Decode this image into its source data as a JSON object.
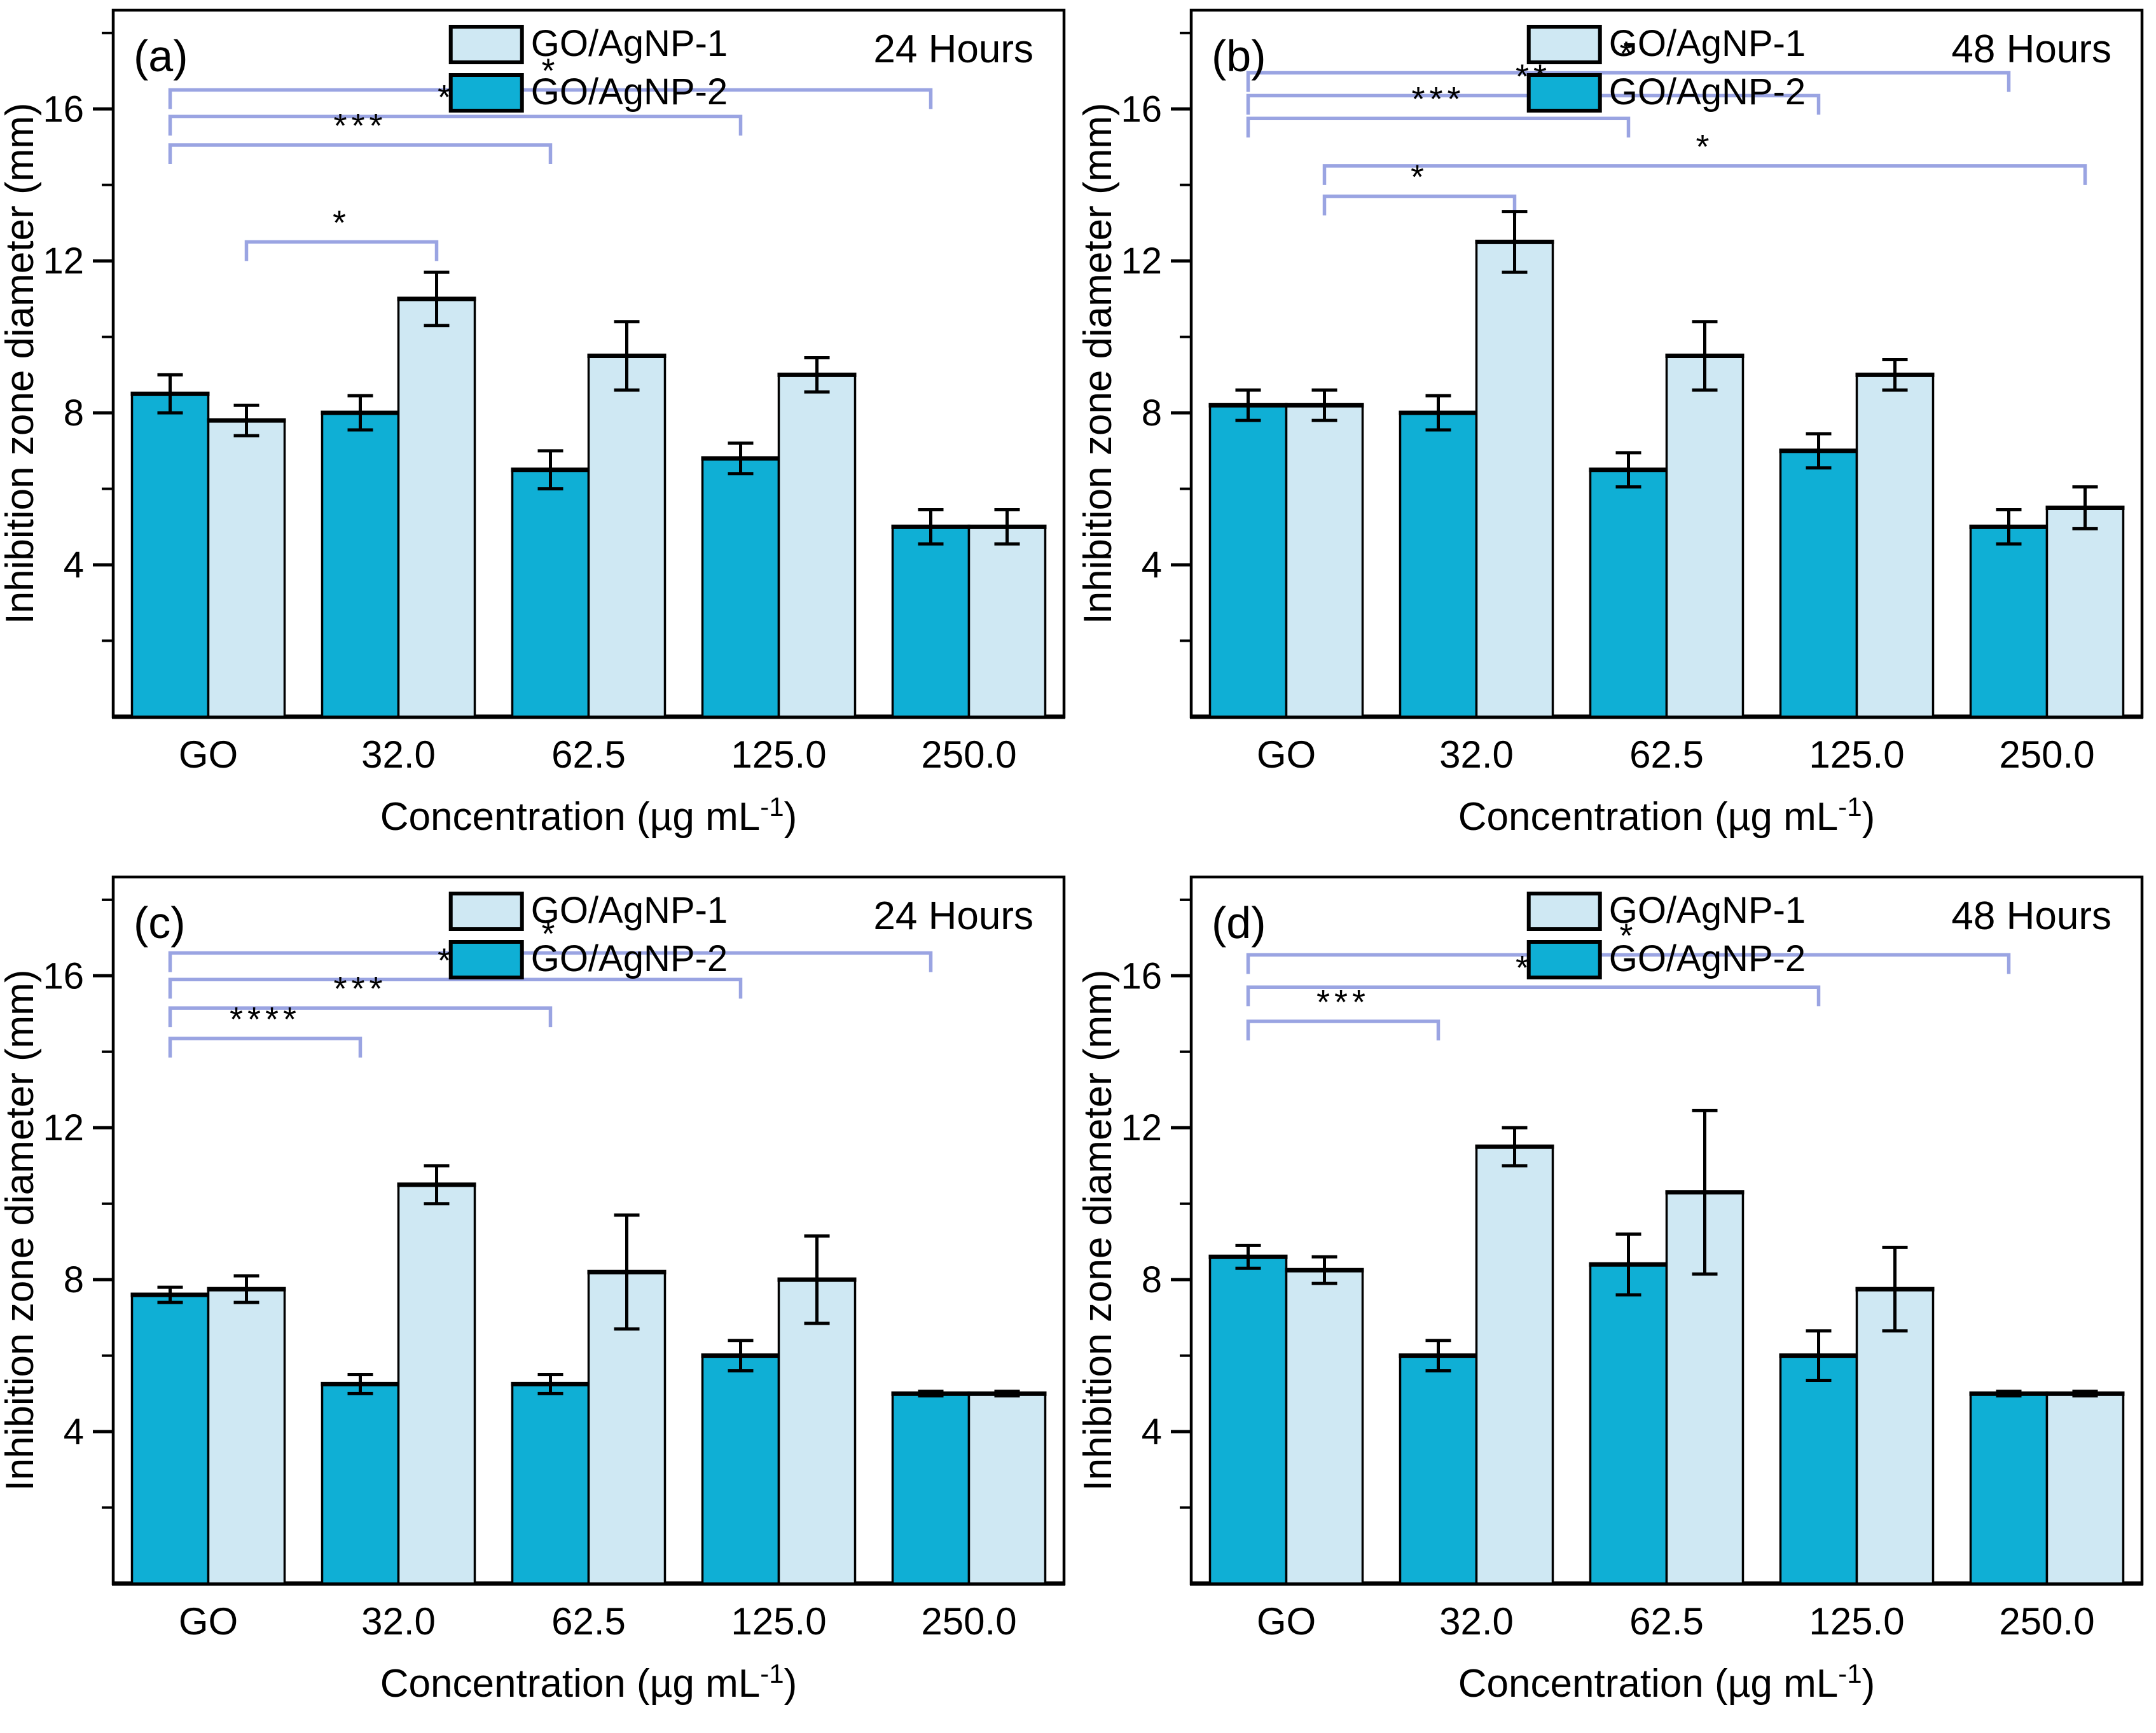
{
  "figure": {
    "background": "#ffffff",
    "axis_color": "#000000",
    "bracket_color": "#9aa4e2",
    "series_colors": {
      "GO/AgNP-1": "#cfe8f3",
      "GO/AgNP-2": "#0fafd5"
    },
    "legend_order": [
      "GO/AgNP-1",
      "GO/AgNP-2"
    ]
  },
  "chart_data": [
    {
      "type": "bar",
      "panel_label": "(a)",
      "annotation": "24 Hours",
      "ylabel": "Inhibition zone diameter (mm)",
      "xlabel_parts": {
        "pre": "Concentration (µg mL",
        "sup": "-1",
        "post": ")"
      },
      "categories": [
        "GO",
        "32.0",
        "62.5",
        "125.0",
        "250.0"
      ],
      "ylim": [
        0,
        18.6
      ],
      "yticks": [
        4,
        8,
        12,
        16
      ],
      "minor_step": 2,
      "legend": [
        "GO/AgNP-1",
        "GO/AgNP-2"
      ],
      "series": [
        {
          "name": "GO/AgNP-2",
          "color": "#0fafd5",
          "values": [
            8.5,
            8.0,
            6.5,
            6.8,
            5.0
          ],
          "errors": [
            0.5,
            0.45,
            0.5,
            0.4,
            0.45
          ]
        },
        {
          "name": "GO/AgNP-1",
          "color": "#cfe8f3",
          "values": [
            7.8,
            11.0,
            9.5,
            9.0,
            5.0
          ],
          "errors": [
            0.4,
            0.7,
            0.9,
            0.45,
            0.45
          ]
        }
      ],
      "brackets": [
        {
          "from": [
            0,
            0
          ],
          "to": [
            4,
            0
          ],
          "y": 16.5,
          "label": "*"
        },
        {
          "from": [
            0,
            0
          ],
          "to": [
            3,
            0
          ],
          "y": 15.8,
          "label": "**"
        },
        {
          "from": [
            0,
            0
          ],
          "to": [
            2,
            0
          ],
          "y": 15.05,
          "label": "***"
        },
        {
          "from": [
            0,
            1
          ],
          "to": [
            1,
            1
          ],
          "y": 12.5,
          "label": "*"
        }
      ]
    },
    {
      "type": "bar",
      "panel_label": "(b)",
      "annotation": "48 Hours",
      "ylabel": "Inhibition zone diameter (mm)",
      "xlabel_parts": {
        "pre": "Concentration (µg mL",
        "sup": "-1",
        "post": ")"
      },
      "categories": [
        "GO",
        "32.0",
        "62.5",
        "125.0",
        "250.0"
      ],
      "ylim": [
        0,
        18.6
      ],
      "yticks": [
        4,
        8,
        12,
        16
      ],
      "minor_step": 2,
      "legend": [
        "GO/AgNP-1",
        "GO/AgNP-2"
      ],
      "series": [
        {
          "name": "GO/AgNP-2",
          "color": "#0fafd5",
          "values": [
            8.2,
            8.0,
            6.5,
            7.0,
            5.0
          ],
          "errors": [
            0.4,
            0.45,
            0.45,
            0.45,
            0.45
          ]
        },
        {
          "name": "GO/AgNP-1",
          "color": "#cfe8f3",
          "values": [
            8.2,
            12.5,
            9.5,
            9.0,
            5.5
          ],
          "errors": [
            0.4,
            0.8,
            0.9,
            0.4,
            0.55
          ]
        }
      ],
      "brackets": [
        {
          "from": [
            0,
            0
          ],
          "to": [
            4,
            0
          ],
          "y": 16.95,
          "label": "*"
        },
        {
          "from": [
            0,
            0
          ],
          "to": [
            3,
            0
          ],
          "y": 16.35,
          "label": "**"
        },
        {
          "from": [
            0,
            0
          ],
          "to": [
            2,
            0
          ],
          "y": 15.75,
          "label": "***"
        },
        {
          "from": [
            0,
            1
          ],
          "to": [
            4,
            1
          ],
          "y": 14.5,
          "label": "*"
        },
        {
          "from": [
            0,
            1
          ],
          "to": [
            1,
            1
          ],
          "y": 13.7,
          "label": "*"
        }
      ]
    },
    {
      "type": "bar",
      "panel_label": "(c)",
      "annotation": "24 Hours",
      "ylabel": "Inhibition zone diameter (mm)",
      "xlabel_parts": {
        "pre": "Concentration (µg mL",
        "sup": "-1",
        "post": ")"
      },
      "categories": [
        "GO",
        "32.0",
        "62.5",
        "125.0",
        "250.0"
      ],
      "ylim": [
        0,
        18.6
      ],
      "yticks": [
        4,
        8,
        12,
        16
      ],
      "minor_step": 2,
      "legend": [
        "GO/AgNP-1",
        "GO/AgNP-2"
      ],
      "series": [
        {
          "name": "GO/AgNP-2",
          "color": "#0fafd5",
          "values": [
            7.6,
            5.25,
            5.25,
            6.0,
            5.0
          ],
          "errors": [
            0.2,
            0.25,
            0.25,
            0.4,
            0.06
          ]
        },
        {
          "name": "GO/AgNP-1",
          "color": "#cfe8f3",
          "values": [
            7.75,
            10.5,
            8.2,
            8.0,
            5.0
          ],
          "errors": [
            0.35,
            0.5,
            1.5,
            1.15,
            0.06
          ]
        }
      ],
      "brackets": [
        {
          "from": [
            0,
            0
          ],
          "to": [
            4,
            0
          ],
          "y": 16.6,
          "label": "*"
        },
        {
          "from": [
            0,
            0
          ],
          "to": [
            3,
            0
          ],
          "y": 15.9,
          "label": "**"
        },
        {
          "from": [
            0,
            0
          ],
          "to": [
            2,
            0
          ],
          "y": 15.15,
          "label": "***"
        },
        {
          "from": [
            0,
            0
          ],
          "to": [
            1,
            0
          ],
          "y": 14.35,
          "label": "****"
        }
      ]
    },
    {
      "type": "bar",
      "panel_label": "(d)",
      "annotation": "48 Hours",
      "ylabel": "Inhibition zone diameter (mm)",
      "xlabel_parts": {
        "pre": "Concentration (µg mL",
        "sup": "-1",
        "post": ")"
      },
      "categories": [
        "GO",
        "32.0",
        "62.5",
        "125.0",
        "250.0"
      ],
      "ylim": [
        0,
        18.6
      ],
      "yticks": [
        4,
        8,
        12,
        16
      ],
      "minor_step": 2,
      "legend": [
        "GO/AgNP-1",
        "GO/AgNP-2"
      ],
      "series": [
        {
          "name": "GO/AgNP-2",
          "color": "#0fafd5",
          "values": [
            8.6,
            6.0,
            8.4,
            6.0,
            5.0
          ],
          "errors": [
            0.3,
            0.4,
            0.8,
            0.65,
            0.06
          ]
        },
        {
          "name": "GO/AgNP-1",
          "color": "#cfe8f3",
          "values": [
            8.25,
            11.5,
            10.3,
            7.75,
            5.0
          ],
          "errors": [
            0.35,
            0.5,
            2.15,
            1.1,
            0.06
          ]
        }
      ],
      "brackets": [
        {
          "from": [
            0,
            0
          ],
          "to": [
            4,
            0
          ],
          "y": 16.55,
          "label": "*"
        },
        {
          "from": [
            0,
            0
          ],
          "to": [
            3,
            0
          ],
          "y": 15.7,
          "label": "**"
        },
        {
          "from": [
            0,
            0
          ],
          "to": [
            1,
            0
          ],
          "y": 14.8,
          "label": "***"
        }
      ]
    }
  ]
}
